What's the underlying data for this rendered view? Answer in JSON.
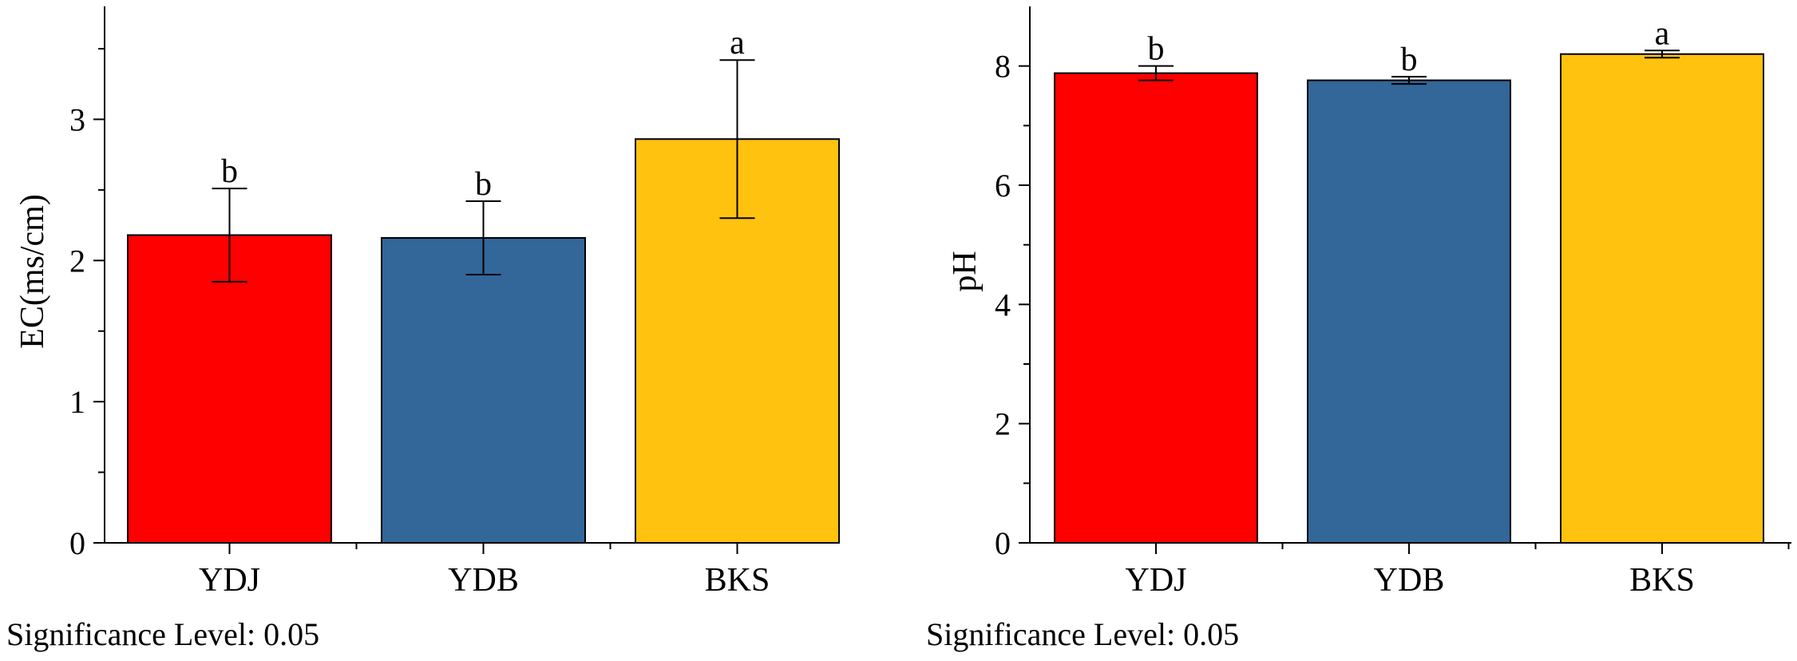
{
  "chart_data": [
    {
      "type": "bar",
      "title": "",
      "xlabel": "",
      "ylabel": "EC(ms/cm)",
      "ylim": [
        0,
        3.8
      ],
      "yticks": [
        0,
        1,
        2,
        3
      ],
      "categories": [
        "YDJ",
        "YDB",
        "BKS"
      ],
      "values": [
        2.18,
        2.16,
        2.86
      ],
      "errors": [
        0.33,
        0.26,
        0.56
      ],
      "significance": [
        "b",
        "b",
        "a"
      ],
      "colors": [
        "#ff0000",
        "#336699",
        "#ffc20e"
      ],
      "footnote": "Significance Level: 0.05"
    },
    {
      "type": "bar",
      "title": "",
      "xlabel": "",
      "ylabel": "pH",
      "ylim": [
        0,
        9
      ],
      "yticks": [
        0,
        2,
        4,
        6,
        8
      ],
      "categories": [
        "YDJ",
        "YDB",
        "BKS"
      ],
      "values": [
        7.88,
        7.76,
        8.2
      ],
      "errors": [
        0.12,
        0.06,
        0.06
      ],
      "significance": [
        "b",
        "b",
        "a"
      ],
      "colors": [
        "#ff0000",
        "#336699",
        "#ffc20e"
      ],
      "footnote": "Significance Level: 0.05"
    }
  ]
}
